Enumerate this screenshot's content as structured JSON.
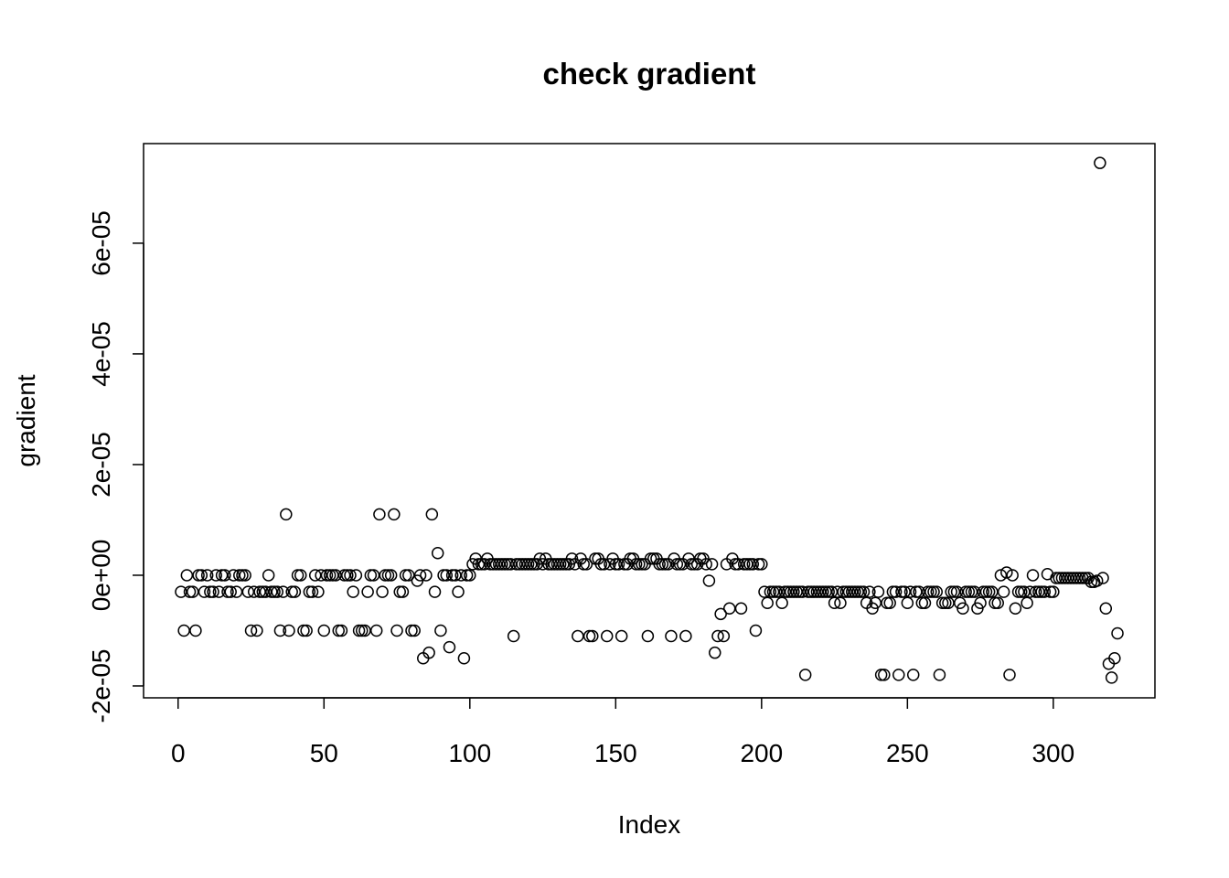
{
  "chart_data": {
    "type": "scatter",
    "title": "check gradient",
    "x_label": "Index",
    "y_label": "gradient",
    "x": [
      1,
      2,
      3,
      4,
      5,
      6,
      7,
      8,
      9,
      10,
      11,
      12,
      13,
      14,
      15,
      16,
      17,
      18,
      19,
      20,
      21,
      22,
      23,
      24,
      25,
      26,
      27,
      28,
      29,
      30,
      31,
      32,
      33,
      34,
      35,
      36,
      37,
      38,
      39,
      40,
      41,
      42,
      43,
      44,
      45,
      46,
      47,
      48,
      49,
      50,
      51,
      52,
      53,
      54,
      55,
      56,
      57,
      58,
      59,
      60,
      61,
      62,
      63,
      64,
      65,
      66,
      67,
      68,
      69,
      70,
      71,
      72,
      73,
      74,
      75,
      76,
      77,
      78,
      79,
      80,
      81,
      82,
      83,
      84,
      85,
      86,
      87,
      88,
      89,
      90,
      91,
      92,
      93,
      94,
      95,
      96,
      97,
      98,
      99,
      100,
      101,
      102,
      103,
      104,
      105,
      106,
      107,
      108,
      109,
      110,
      111,
      112,
      113,
      114,
      115,
      116,
      117,
      118,
      119,
      120,
      121,
      122,
      123,
      124,
      125,
      126,
      127,
      128,
      129,
      130,
      131,
      132,
      133,
      134,
      135,
      136,
      137,
      138,
      139,
      140,
      141,
      142,
      143,
      144,
      145,
      146,
      147,
      148,
      149,
      150,
      151,
      152,
      153,
      154,
      155,
      156,
      157,
      158,
      159,
      160,
      161,
      162,
      163,
      164,
      165,
      166,
      167,
      168,
      169,
      170,
      171,
      172,
      173,
      174,
      175,
      176,
      177,
      178,
      179,
      180,
      181,
      182,
      183,
      184,
      185,
      186,
      187,
      188,
      189,
      190,
      191,
      192,
      193,
      194,
      195,
      196,
      197,
      198,
      199,
      200,
      201,
      202,
      203,
      204,
      205,
      206,
      207,
      208,
      209,
      210,
      211,
      212,
      213,
      214,
      215,
      216,
      217,
      218,
      219,
      220,
      221,
      222,
      223,
      224,
      225,
      226,
      227,
      228,
      229,
      230,
      231,
      232,
      233,
      234,
      235,
      236,
      237,
      238,
      239,
      240,
      241,
      242,
      243,
      244,
      245,
      246,
      247,
      248,
      249,
      250,
      251,
      252,
      253,
      254,
      255,
      256,
      257,
      258,
      259,
      260,
      261,
      262,
      263,
      264,
      265,
      266,
      267,
      268,
      269,
      270,
      271,
      272,
      273,
      274,
      275,
      276,
      277,
      278,
      279,
      280,
      281,
      282,
      283,
      284,
      285,
      286,
      287,
      288,
      289,
      290,
      291,
      292,
      293,
      294,
      295,
      296,
      297,
      298,
      299,
      300,
      301,
      302,
      303,
      304,
      305,
      306,
      307,
      308,
      309,
      310,
      311,
      312,
      313,
      314,
      315,
      316,
      317,
      318,
      319,
      320,
      321,
      322
    ],
    "values": [
      -3e-06,
      -1e-05,
      0,
      -3e-06,
      -3e-06,
      -1e-05,
      0,
      0,
      -3e-06,
      0,
      -3e-06,
      -3e-06,
      0,
      -3e-06,
      0,
      0,
      -3e-06,
      -3e-06,
      0,
      -3e-06,
      0,
      0,
      0,
      -3e-06,
      -1e-05,
      -3e-06,
      -1e-05,
      -3e-06,
      -3e-06,
      -3e-06,
      0,
      -3e-06,
      -3e-06,
      -3e-06,
      -1e-05,
      -3e-06,
      1.1e-05,
      -1e-05,
      -3e-06,
      -3e-06,
      0,
      0,
      -1e-05,
      -1e-05,
      -3e-06,
      -3e-06,
      0,
      -3e-06,
      0,
      -1e-05,
      0,
      0,
      0,
      0,
      -1e-05,
      -1e-05,
      0,
      0,
      0,
      -3e-06,
      0,
      -1e-05,
      -1e-05,
      -1e-05,
      -3e-06,
      0,
      0,
      -1e-05,
      1.1e-05,
      -3e-06,
      0,
      0,
      0,
      1.1e-05,
      -1e-05,
      -3e-06,
      -3e-06,
      0,
      0,
      -1e-05,
      -1e-05,
      -1e-06,
      0,
      -1.5e-05,
      0,
      -1.4e-05,
      1.1e-05,
      -3e-06,
      4e-06,
      -1e-05,
      0,
      0,
      -1.3e-05,
      0,
      0,
      -3e-06,
      0,
      -1.5e-05,
      0,
      0,
      2e-06,
      3e-06,
      2e-06,
      2e-06,
      2e-06,
      3e-06,
      2e-06,
      2e-06,
      2e-06,
      2e-06,
      2e-06,
      2e-06,
      2e-06,
      2e-06,
      -1.1e-05,
      2e-06,
      2e-06,
      2e-06,
      2e-06,
      2e-06,
      2e-06,
      2e-06,
      2e-06,
      3e-06,
      2e-06,
      3e-06,
      2e-06,
      2e-06,
      2e-06,
      2e-06,
      2e-06,
      2e-06,
      2e-06,
      2e-06,
      3e-06,
      2e-06,
      -1.1e-05,
      3e-06,
      2e-06,
      2e-06,
      -1.1e-05,
      -1.1e-05,
      3e-06,
      3e-06,
      2e-06,
      2e-06,
      -1.1e-05,
      2e-06,
      3e-06,
      2e-06,
      2e-06,
      -1.1e-05,
      2e-06,
      2e-06,
      3e-06,
      3e-06,
      2e-06,
      2e-06,
      2e-06,
      2e-06,
      -1.1e-05,
      3e-06,
      3e-06,
      3e-06,
      2e-06,
      2e-06,
      2e-06,
      2e-06,
      -1.1e-05,
      3e-06,
      2e-06,
      2e-06,
      2e-06,
      -1.1e-05,
      3e-06,
      2e-06,
      2e-06,
      2e-06,
      3e-06,
      3e-06,
      2e-06,
      -1e-06,
      2e-06,
      -1.4e-05,
      -1.1e-05,
      -7e-06,
      -1.1e-05,
      2e-06,
      -6e-06,
      3e-06,
      2e-06,
      2e-06,
      -6e-06,
      2e-06,
      2e-06,
      2e-06,
      2e-06,
      -1e-05,
      2e-06,
      2e-06,
      -3e-06,
      -5e-06,
      -3e-06,
      -3e-06,
      -3e-06,
      -3e-06,
      -5e-06,
      -3e-06,
      -3e-06,
      -3e-06,
      -3e-06,
      -3e-06,
      -3e-06,
      -3e-06,
      -1.8e-05,
      -3e-06,
      -3e-06,
      -3e-06,
      -3e-06,
      -3e-06,
      -3e-06,
      -3e-06,
      -3e-06,
      -3e-06,
      -5e-06,
      -3e-06,
      -5e-06,
      -3e-06,
      -3e-06,
      -3e-06,
      -3e-06,
      -3e-06,
      -3e-06,
      -3e-06,
      -3e-06,
      -5e-06,
      -3e-06,
      -6e-06,
      -5e-06,
      -3e-06,
      -1.8e-05,
      -1.8e-05,
      -5e-06,
      -5e-06,
      -3e-06,
      -3e-06,
      -1.8e-05,
      -3e-06,
      -3e-06,
      -5e-06,
      -3e-06,
      -1.8e-05,
      -3e-06,
      -3e-06,
      -5e-06,
      -5e-06,
      -3e-06,
      -3e-06,
      -3e-06,
      -3e-06,
      -1.8e-05,
      -5e-06,
      -5e-06,
      -5e-06,
      -3e-06,
      -3e-06,
      -3e-06,
      -5e-06,
      -6e-06,
      -3e-06,
      -3e-06,
      -3e-06,
      -3e-06,
      -6e-06,
      -5e-06,
      -3e-06,
      -3e-06,
      -3e-06,
      -3e-06,
      -5e-06,
      -5e-06,
      0,
      -3e-06,
      5e-07,
      -1.8e-05,
      0,
      -6e-06,
      -3e-06,
      -3e-06,
      -3e-06,
      -5e-06,
      -3e-06,
      0,
      -3e-06,
      -3e-06,
      -3e-06,
      -3e-06,
      2e-07,
      -3e-06,
      -3e-06,
      -5e-07,
      -5e-07,
      -5e-07,
      -5e-07,
      -5e-07,
      -5e-07,
      -5e-07,
      -5e-07,
      -5e-07,
      -5e-07,
      -5e-07,
      -5e-07,
      -1.2e-06,
      -1.2e-06,
      -1e-06,
      7.45e-05,
      -5e-07,
      -6e-06,
      -1.6e-05,
      -1.85e-05,
      -1.5e-05,
      -1.05e-05
    ],
    "color": "#000000",
    "xlim": [
      -11.84,
      334.84
    ],
    "xticks": [
      0,
      50,
      100,
      150,
      200,
      250,
      300
    ],
    "ylim": [
      -2.215e-05,
      7.8e-05
    ],
    "yticks": [
      {
        "value": -2e-05,
        "label": "-2e-05"
      },
      {
        "value": 0,
        "label": "0e+00"
      },
      {
        "value": 2e-05,
        "label": "2e-05"
      },
      {
        "value": 4e-05,
        "label": "4e-05"
      },
      {
        "value": 6e-05,
        "label": "6e-05"
      }
    ]
  }
}
